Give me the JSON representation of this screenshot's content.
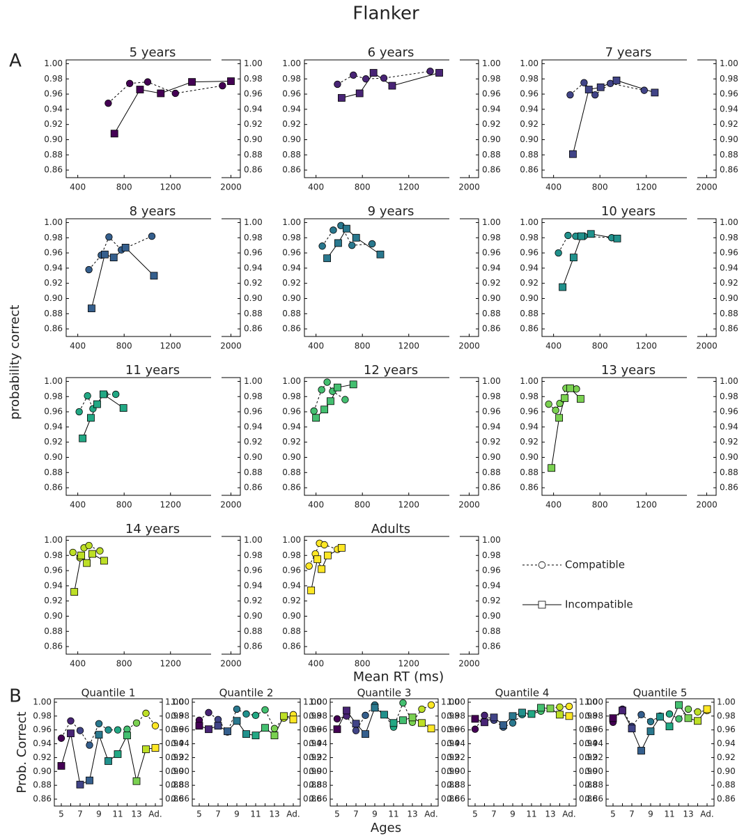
{
  "title": "Flanker",
  "chart_data": [
    {
      "type": "line",
      "panel_label": "A",
      "xlabel": "Mean RT (ms)",
      "ylabel": "probability correct",
      "xlim": [
        300,
        1550
      ],
      "xlim_break": [
        1920,
        2080
      ],
      "xticks": [
        400,
        800,
        1200
      ],
      "xticks_break": [
        2000
      ],
      "ylim": [
        0.85,
        1.005
      ],
      "yticks": [
        {
          "value": 0.86,
          "label": "0.86"
        },
        {
          "value": 0.88,
          "label": "0.88"
        },
        {
          "value": 0.9,
          "label": "0.90"
        },
        {
          "value": 0.92,
          "label": "0.92"
        },
        {
          "value": 0.94,
          "label": "0.94"
        },
        {
          "value": 0.96,
          "label": "0.96"
        },
        {
          "value": 0.98,
          "label": "0.98"
        },
        {
          "value": 1,
          "label": "1.00"
        }
      ],
      "legend": [
        {
          "name": "Compatible",
          "line": "dashed",
          "marker": "circle"
        },
        {
          "name": "Incompatible",
          "line": "solid",
          "marker": "square"
        }
      ],
      "subplots": [
        {
          "title": "5 years",
          "color": "#440154",
          "series": [
            {
              "x": [
                663,
                848,
                1003,
                1242,
                1928
              ],
              "values": [
                0.948,
                0.974,
                0.976,
                0.961,
                0.971
              ]
            },
            {
              "x": [
                716,
                937,
                1116,
                1385,
                2000
              ],
              "values": [
                0.908,
                0.966,
                0.961,
                0.976,
                0.977
              ]
            }
          ]
        },
        {
          "title": "6 years",
          "color": "#482475",
          "series": [
            {
              "x": [
                585,
                722,
                830,
                985,
                1385
              ],
              "values": [
                0.973,
                0.985,
                0.98,
                0.981,
                0.99
              ]
            },
            {
              "x": [
                621,
                776,
                896,
                1057,
                1463
              ],
              "values": [
                0.955,
                0.961,
                0.988,
                0.971,
                0.988
              ]
            }
          ]
        },
        {
          "title": "7 years",
          "color": "#414487",
          "series": [
            {
              "x": [
                543,
                663,
                758,
                890,
                1182
              ],
              "values": [
                0.959,
                0.975,
                0.959,
                0.974,
                0.965
              ]
            },
            {
              "x": [
                567,
                704,
                806,
                943,
                1273
              ],
              "values": [
                0.881,
                0.966,
                0.969,
                0.978,
                0.962
              ]
            }
          ]
        },
        {
          "title": "8 years",
          "color": "#355f8d",
          "series": [
            {
              "x": [
                496,
                603,
                669,
                776,
                1039
              ],
              "values": [
                0.938,
                0.957,
                0.981,
                0.964,
                0.982
              ]
            },
            {
              "x": [
                519,
                633,
                710,
                812,
                1057
              ],
              "values": [
                0.887,
                0.958,
                0.954,
                0.967,
                0.93
              ]
            }
          ]
        },
        {
          "title": "9 years",
          "color": "#2a788e",
          "series": [
            {
              "x": [
                454,
                549,
                615,
                710,
                884
              ],
              "values": [
                0.969,
                0.99,
                0.996,
                0.97,
                0.972
              ]
            },
            {
              "x": [
                496,
                591,
                663,
                746,
                955
              ],
              "values": [
                0.953,
                0.973,
                0.992,
                0.98,
                0.958
              ]
            }
          ]
        },
        {
          "title": "10 years",
          "color": "#21918c",
          "series": [
            {
              "x": [
                442,
                525,
                591,
                663,
                901
              ],
              "values": [
                0.96,
                0.983,
                0.982,
                0.982,
                0.98
              ]
            },
            {
              "x": [
                478,
                573,
                639,
                722,
                949
              ],
              "values": [
                0.915,
                0.954,
                0.982,
                0.985,
                0.979
              ]
            }
          ]
        },
        {
          "title": "11 years",
          "color": "#22a884",
          "series": [
            {
              "x": [
                412,
                484,
                531,
                633,
                728
              ],
              "values": [
                0.96,
                0.981,
                0.964,
                0.983,
                0.983
              ]
            },
            {
              "x": [
                442,
                513,
                567,
                621,
                794
              ],
              "values": [
                0.925,
                0.952,
                0.97,
                0.983,
                0.965
              ]
            }
          ]
        },
        {
          "title": "12 years",
          "color": "#44bf70",
          "series": [
            {
              "x": [
                382,
                448,
                496,
                543,
                651
              ],
              "values": [
                0.961,
                0.989,
                0.999,
                0.987,
                0.976
              ]
            },
            {
              "x": [
                400,
                472,
                525,
                585,
                722
              ],
              "values": [
                0.952,
                0.963,
                0.974,
                0.992,
                0.996
              ]
            }
          ]
        },
        {
          "title": "13 years",
          "color": "#7ad151",
          "series": [
            {
              "x": [
                358,
                418,
                454,
                507,
                597
              ],
              "values": [
                0.97,
                0.962,
                0.971,
                0.991,
                0.99
              ]
            },
            {
              "x": [
                382,
                448,
                496,
                543,
                633
              ],
              "values": [
                0.886,
                0.952,
                0.978,
                0.991,
                0.977
              ]
            }
          ]
        },
        {
          "title": "14 years",
          "color": "#bddf26",
          "series": [
            {
              "x": [
                358,
                418,
                454,
                496,
                591
              ],
              "values": [
                0.984,
                0.977,
                0.99,
                0.993,
                0.986
              ]
            },
            {
              "x": [
                370,
                430,
                478,
                525,
                627
              ],
              "values": [
                0.932,
                0.98,
                0.97,
                0.982,
                0.973
              ]
            }
          ]
        },
        {
          "title": "Adults",
          "color": "#fde725",
          "series": [
            {
              "x": [
                340,
                394,
                430,
                472,
                585
              ],
              "values": [
                0.966,
                0.982,
                0.996,
                0.994,
                0.988
              ]
            },
            {
              "x": [
                358,
                412,
                448,
                501,
                621
              ],
              "values": [
                0.934,
                0.975,
                0.962,
                0.98,
                0.99
              ]
            }
          ]
        }
      ]
    },
    {
      "type": "line",
      "panel_label": "B",
      "xlabel": "Ages",
      "ylabel": "Prob. Correct",
      "categories": [
        "5",
        null,
        "7",
        null,
        "9",
        null,
        "11",
        null,
        "13",
        null,
        "Ad."
      ],
      "ylim": [
        0.85,
        1.005
      ],
      "yticks": [
        {
          "value": 0.86,
          "label": "0.86"
        },
        {
          "value": 0.88,
          "label": "0.88"
        },
        {
          "value": 0.9,
          "label": "0.90"
        },
        {
          "value": 0.92,
          "label": "0.92"
        },
        {
          "value": 0.94,
          "label": "0.94"
        },
        {
          "value": 0.96,
          "label": "0.96"
        },
        {
          "value": 0.98,
          "label": "0.98"
        },
        {
          "value": 1,
          "label": "1.00"
        }
      ],
      "titles": [
        "Quantile 1",
        "Quantile 2",
        "Quantile 3",
        "Quantile 4",
        "Quantile 5"
      ]
    }
  ]
}
